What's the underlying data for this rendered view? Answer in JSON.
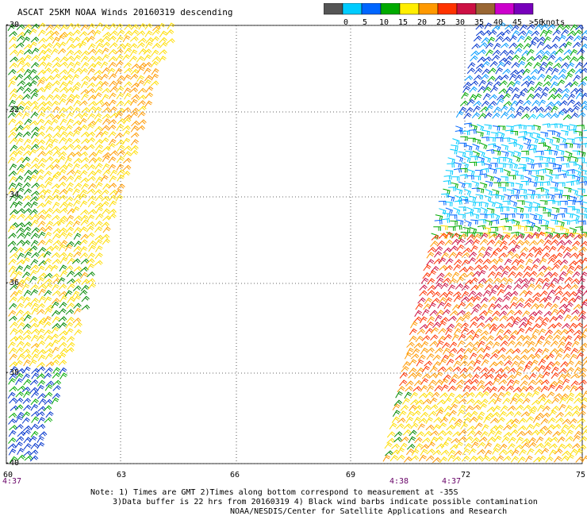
{
  "title": "ASCAT 25KM NOAA Winds 20160319 descending",
  "speed_scale": {
    "unit": "knots",
    "labels": [
      "0",
      "5",
      "10",
      "15",
      "20",
      "25",
      "30",
      "35",
      "40",
      "45",
      ">50"
    ],
    "colors": [
      "#555555",
      "#00ccff",
      "#0066ff",
      "#00aa00",
      "#ffee00",
      "#ff9900",
      "#ff3300",
      "#cc1144",
      "#996633",
      "#cc00cc",
      "#7700bb"
    ]
  },
  "axes": {
    "lat_labels": [
      "-30",
      "-32",
      "-34",
      "-36",
      "-38",
      "-40"
    ],
    "lon_labels": [
      "60",
      "63",
      "66",
      "69",
      "72",
      "75"
    ]
  },
  "pass_times": [
    "4:37",
    "4:38",
    "4:37"
  ],
  "notes": {
    "line1": "Note: 1) Times are GMT 2)Times along bottom correspond to measurement at -35S",
    "line2": "3)Data buffer is 22 hrs from 20160319 4) Black wind barbs indicate possible contamination",
    "line3": "NOAA/NESDIS/Center for Satellite Applications and Research"
  }
}
